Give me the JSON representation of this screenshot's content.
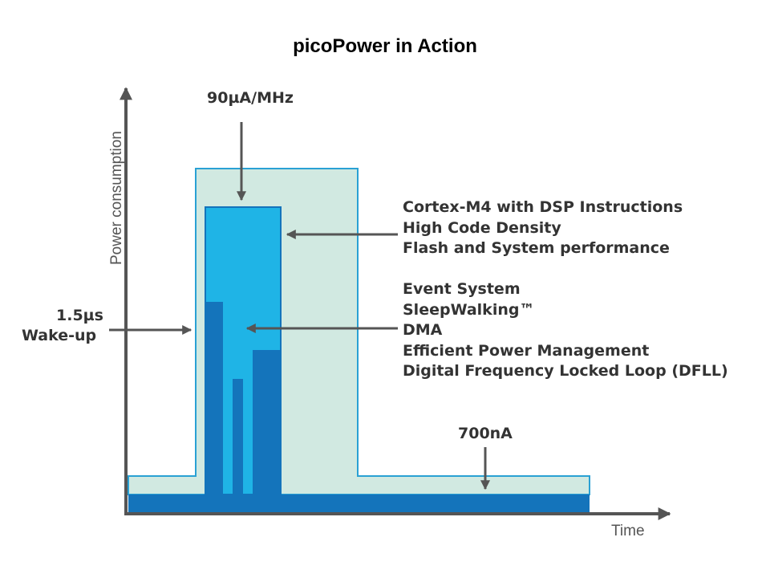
{
  "title": "picoPower in Action",
  "axes": {
    "y_label": "Power consumption",
    "x_label": "Time"
  },
  "annotations": {
    "peak_current": "90µA/MHz",
    "wakeup_time": "1.5µs",
    "wakeup_label": "Wake-up",
    "sleep_current": "700nA"
  },
  "features_group_1": [
    "Cortex-M4 with DSP Instructions",
    "High Code Density",
    "Flash and System performance"
  ],
  "features_group_2": [
    "Event System",
    "SleepWalking™",
    "DMA",
    "Efficient Power Management",
    "Digital Frequency Locked Loop (DFLL)"
  ],
  "colors": {
    "outer_envelope_fill": "#d1e9e1",
    "outer_envelope_stroke": "#2aa1d4",
    "active_fill": "#1fb4e6",
    "baseline_fill": "#1474bb",
    "axis_color": "#555555",
    "text_color": "#333333"
  }
}
